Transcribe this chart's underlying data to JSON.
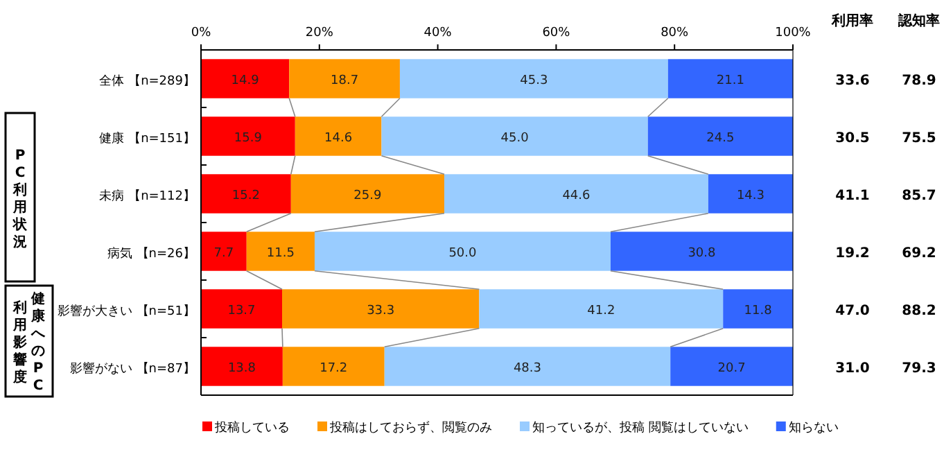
{
  "chart_data": {
    "type": "bar",
    "orientation": "horizontal",
    "stacked": true,
    "legend": "bottom",
    "grid": false,
    "categories": [
      "全体 【n=289】",
      "健康 【n=151】",
      "未病 【n=112】",
      "病気 【n=26】",
      "影響が大きい 【n=51】",
      "影響がない 【n=87】"
    ],
    "series": [
      {
        "name": "投稿している",
        "color": "#ff0000",
        "values": [
          14.9,
          15.9,
          15.2,
          7.7,
          13.7,
          13.8
        ],
        "value_labels": [
          "14.9",
          "15.9",
          "15.2",
          "7.7",
          "13.7",
          "13.8"
        ]
      },
      {
        "name": "投稿はしておらず、閲覧のみ",
        "color": "#ff9900",
        "values": [
          18.7,
          14.6,
          25.9,
          11.5,
          33.3,
          17.2
        ],
        "value_labels": [
          "18.7",
          "14.6",
          "25.9",
          "11.5",
          "33.3",
          "17.2"
        ]
      },
      {
        "name": "知っているが、投稿 閲覧はしていない",
        "color": "#99ccff",
        "values": [
          45.3,
          45.0,
          44.6,
          50.0,
          41.2,
          48.3
        ],
        "value_labels": [
          "45.3",
          "45.0",
          "44.6",
          "50.0",
          "41.2",
          "48.3"
        ]
      },
      {
        "name": "知らない",
        "color": "#3366ff",
        "values": [
          21.1,
          24.5,
          14.3,
          30.8,
          11.8,
          20.7
        ],
        "value_labels": [
          "21.1",
          "24.5",
          "14.3",
          "30.8",
          "11.8",
          "20.7"
        ]
      }
    ],
    "xlim": [
      0,
      100
    ],
    "xticks": [
      {
        "value": 0,
        "label": "0%"
      },
      {
        "value": 20,
        "label": "20%"
      },
      {
        "value": 40,
        "label": "40%"
      },
      {
        "value": 60,
        "label": "60%"
      },
      {
        "value": 80,
        "label": "80%"
      },
      {
        "value": 100,
        "label": "100%"
      }
    ],
    "annotations": [
      "PC利用状況",
      "健康へのPC",
      "利用影響度",
      "利用率",
      "認知率",
      "33.6",
      "78.9",
      "30.5",
      "75.5",
      "41.1",
      "85.7",
      "19.2",
      "69.2",
      "47.0",
      "88.2",
      "31.0",
      "79.3"
    ]
  }
}
